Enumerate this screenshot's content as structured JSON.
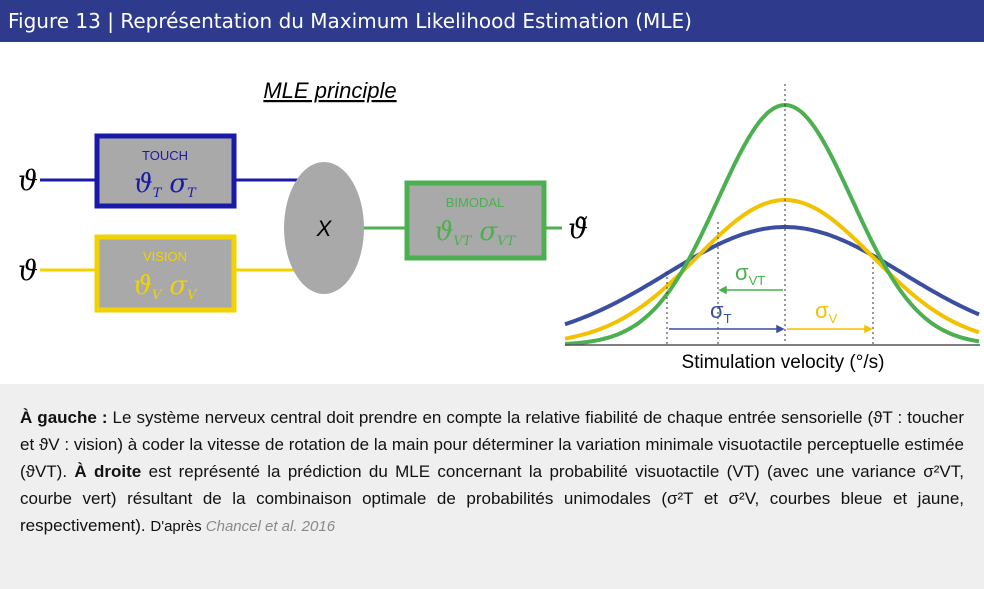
{
  "header": {
    "title": "Figure 13 | Représentation du Maximum Likelihood Estimation (MLE)"
  },
  "diagram": {
    "title": "MLE principle",
    "inputs": [
      "ϑ",
      "ϑ"
    ],
    "touch": {
      "label": "TOUCH",
      "theta": "ϑ",
      "theta_sub": "T",
      "sigma": "σ",
      "sigma_sub": "T"
    },
    "vision": {
      "label": "VISION",
      "theta": "ϑ",
      "theta_sub": "V",
      "sigma": "σ",
      "sigma_sub": "V"
    },
    "operator": "X",
    "bimodal": {
      "label": "BIMODAL",
      "theta": "ϑ",
      "theta_sub": "VT",
      "sigma": "σ",
      "sigma_sub": "VT"
    },
    "output": "ϑ̃"
  },
  "chart": {
    "sigma_vt": {
      "symbol": "σ",
      "sub": "VT"
    },
    "sigma_t": {
      "symbol": "σ",
      "sub": "T"
    },
    "sigma_v": {
      "symbol": "σ",
      "sub": "V"
    },
    "x_label": "Stimulation velocity (°/s)"
  },
  "caption": {
    "segments": [
      {
        "text": "À gauche :",
        "style": "bold"
      },
      {
        "text": " Le système nerveux central doit prendre en compte la relative fiabilité de chaque entrée sensorielle (ϑT : toucher et ϑV : vision) à coder la vitesse de rotation de la main pour déterminer la variation minimale visuotactile perceptuelle estimée (ϑVT). ",
        "style": "normal"
      },
      {
        "text": "À droite",
        "style": "bold"
      },
      {
        "text": " est représenté la prédiction du MLE concernant la probabilité visuotactile (VT) (avec une variance σ²VT, courbe vert) résultant de la combinaison optimale de probabilités unimodales (σ²T et σ²V, courbes bleue et jaune, respectivement). ",
        "style": "normal"
      },
      {
        "text": "D'après ",
        "style": "small"
      },
      {
        "text": "Chancel et al. 2016",
        "style": "cite"
      }
    ]
  }
}
